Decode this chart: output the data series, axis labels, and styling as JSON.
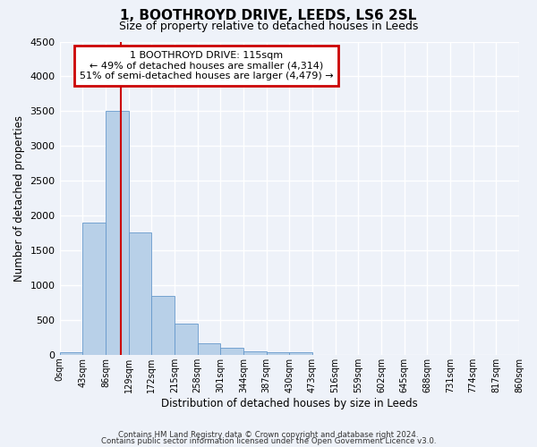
{
  "title": "1, BOOTHROYD DRIVE, LEEDS, LS6 2SL",
  "subtitle": "Size of property relative to detached houses in Leeds",
  "xlabel": "Distribution of detached houses by size in Leeds",
  "ylabel": "Number of detached properties",
  "bar_color": "#b8d0e8",
  "bar_edge_color": "#6699cc",
  "background_color": "#eef2f9",
  "grid_color": "#ffffff",
  "annotation_box_color": "#cc0000",
  "vline_color": "#cc0000",
  "tick_labels": [
    "0sqm",
    "43sqm",
    "86sqm",
    "129sqm",
    "172sqm",
    "215sqm",
    "258sqm",
    "301sqm",
    "344sqm",
    "387sqm",
    "430sqm",
    "473sqm",
    "516sqm",
    "559sqm",
    "602sqm",
    "645sqm",
    "688sqm",
    "731sqm",
    "774sqm",
    "817sqm",
    "860sqm"
  ],
  "bar_values": [
    40,
    1900,
    3500,
    1760,
    840,
    450,
    170,
    95,
    55,
    35,
    30,
    0,
    0,
    0,
    0,
    0,
    0,
    0,
    0,
    0
  ],
  "vline_x": 2.65,
  "ylim": [
    0,
    4500
  ],
  "annotation_line1": "1 BOOTHROYD DRIVE: 115sqm",
  "annotation_line2": "← 49% of detached houses are smaller (4,314)",
  "annotation_line3": "51% of semi-detached houses are larger (4,479) →",
  "footer_line1": "Contains HM Land Registry data © Crown copyright and database right 2024.",
  "footer_line2": "Contains public sector information licensed under the Open Government Licence v3.0."
}
